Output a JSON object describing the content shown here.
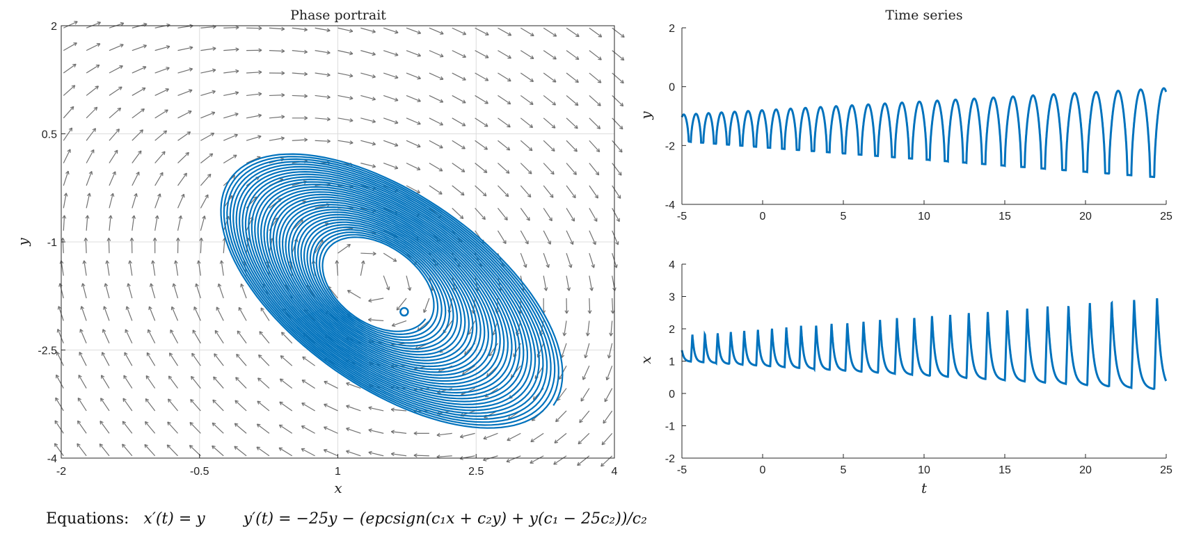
{
  "chart_data": [
    {
      "type": "quiver+line",
      "title": "Phase portrait",
      "xlabel": "x",
      "ylabel": "y",
      "xlim": [
        -2,
        4
      ],
      "ylim": [
        -4,
        2
      ],
      "xticks": [
        "-2",
        "-0.5",
        "1",
        "2.5",
        "4"
      ],
      "yticks": [
        "-4",
        "-2.5",
        "-1",
        "0.5",
        "2"
      ],
      "grid": true,
      "trajectory": {
        "description_center": [
          1.35,
          -1.5
        ],
        "start_point": [
          1.72,
          -1.97
        ],
        "outer_extent": {
          "x": [
            0.1,
            3.4
          ],
          "y": [
            -3.2,
            0.1
          ]
        },
        "inner_hole_extent": {
          "x": [
            0.95,
            2.0
          ],
          "y": [
            -1.9,
            -0.9
          ]
        },
        "color": "#0072BD"
      },
      "field_color": "#707070"
    },
    {
      "type": "line",
      "title": "Time series",
      "xlabel": "",
      "ylabel": "y",
      "xlim": [
        -5,
        25
      ],
      "ylim": [
        -4,
        2
      ],
      "xticks": [
        "-5",
        "0",
        "5",
        "10",
        "15",
        "20",
        "25"
      ],
      "yticks": [
        "-4",
        "-2",
        "0",
        "2"
      ],
      "oscillation": {
        "start_period": 0.75,
        "end_period": 1.45,
        "max_start": -0.95,
        "max_end": -0.05,
        "min_start": -1.85,
        "min_end": -3.1
      },
      "color": "#0072BD"
    },
    {
      "type": "line",
      "title": "",
      "xlabel": "t",
      "ylabel": "x",
      "xlim": [
        -5,
        25
      ],
      "ylim": [
        -2,
        4
      ],
      "xticks": [
        "-5",
        "0",
        "5",
        "10",
        "15",
        "20",
        "25"
      ],
      "yticks": [
        "-2",
        "-1",
        "0",
        "1",
        "2",
        "3",
        "4"
      ],
      "oscillation": {
        "start_period": 0.75,
        "end_period": 1.45,
        "max_start": 1.8,
        "max_end": 3.0,
        "min_start": 1.0,
        "min_end": 0.1
      },
      "color": "#0072BD"
    }
  ],
  "equations": {
    "label": "Equations:",
    "eq1": "x′(t) = y",
    "eq2": "y′(t) = −25y − (epcsign(c₁x + c₂y) + y(c₁ − 25c₂))/c₂"
  }
}
